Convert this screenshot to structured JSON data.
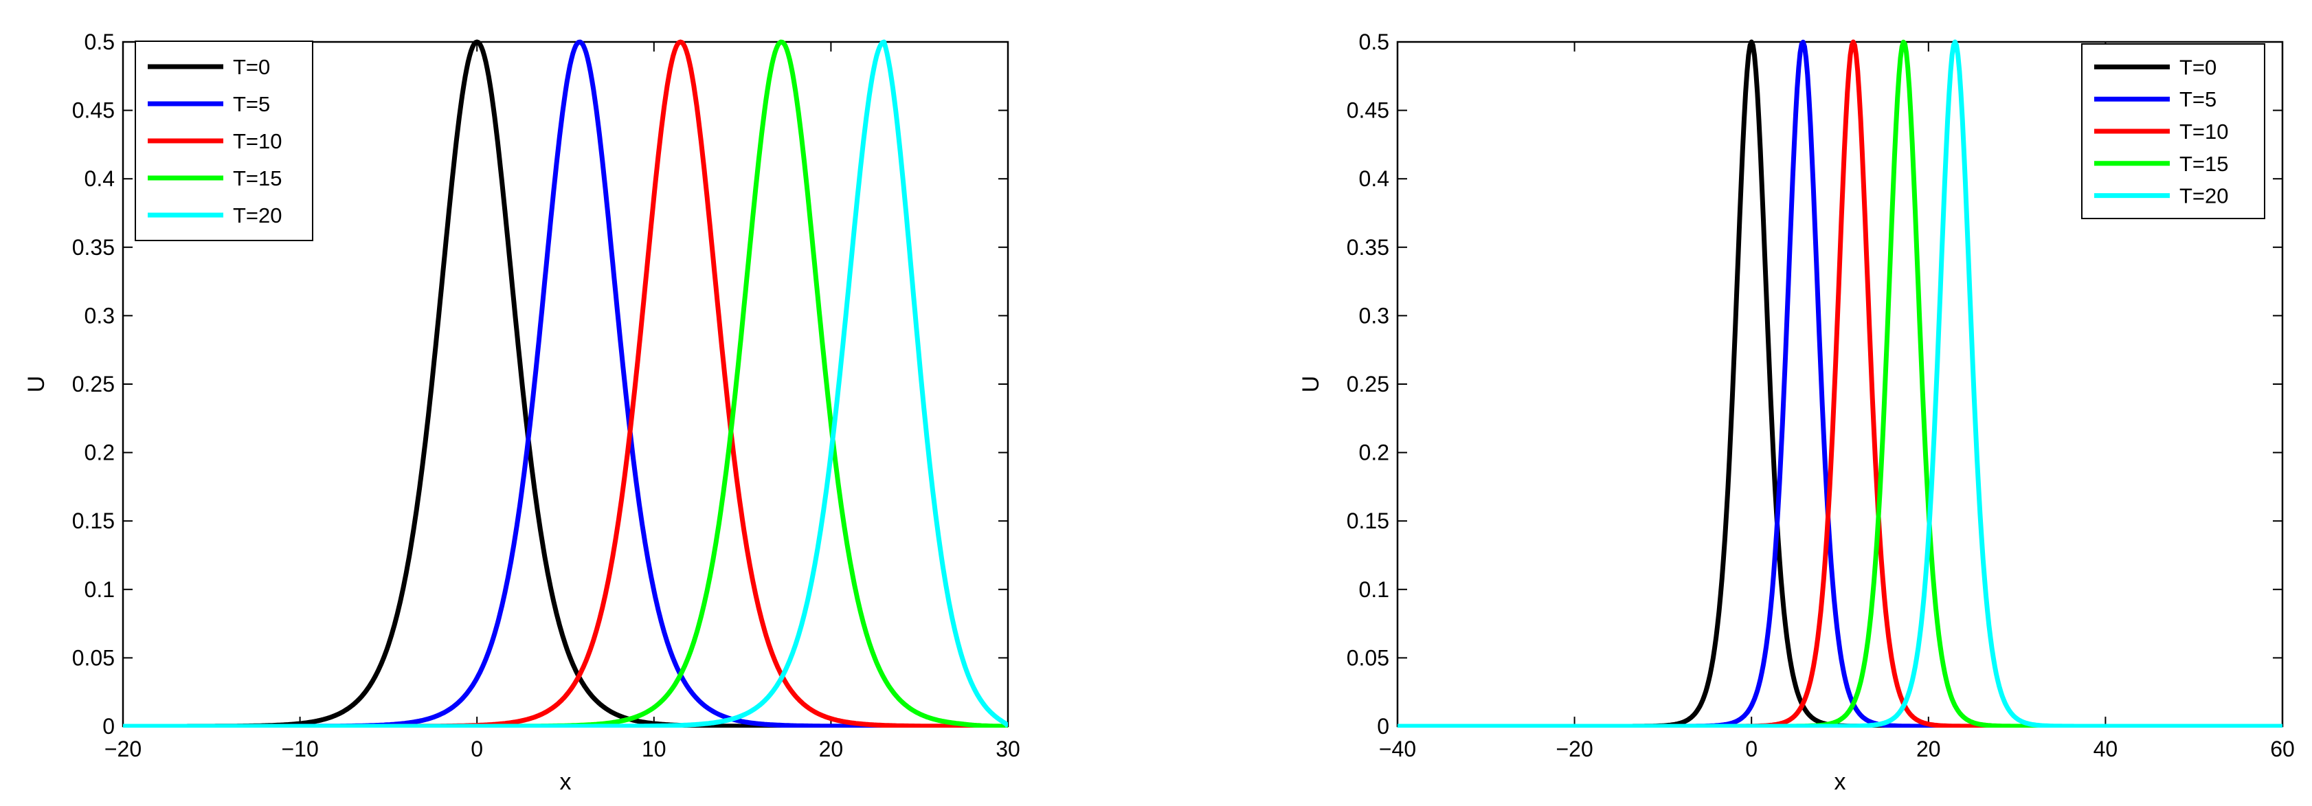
{
  "chart_data": [
    {
      "type": "line",
      "xlabel": "x",
      "ylabel": "U",
      "xlim": [
        -20,
        30
      ],
      "ylim": [
        0,
        0.5
      ],
      "xticks": [
        "-20",
        "-10",
        "0",
        "10",
        "20",
        "30"
      ],
      "yticks": [
        "0",
        "0.05",
        "0.1",
        "0.15",
        "0.2",
        "0.25",
        "0.3",
        "0.35",
        "0.4",
        "0.45",
        "0.5"
      ],
      "grid": false,
      "legend": "top-left",
      "series": [
        {
          "name": "T=0",
          "color": "#000000",
          "x": [
            -20,
            -16,
            -12,
            -10,
            -8,
            -6,
            -4,
            -2,
            0,
            2,
            4,
            6,
            8,
            10,
            12,
            14,
            16,
            20,
            24,
            28,
            30
          ],
          "y": [
            0.0005,
            0.001,
            0.006,
            0.013,
            0.03,
            0.068,
            0.14,
            0.28,
            0.5,
            0.28,
            0.14,
            0.068,
            0.03,
            0.013,
            0.006,
            0.003,
            0.001,
            0.0005,
            0.0003,
            0.0001,
            0
          ]
        },
        {
          "name": "T=5",
          "color": "#0000ff",
          "x": [
            -20,
            -12,
            -8,
            -5.8,
            -3.8,
            -1.8,
            0.2,
            2.2,
            3.8,
            5.8,
            7.8,
            9.8,
            11.8,
            13.8,
            15.8,
            17.8,
            19.8,
            21.8,
            25.8,
            30
          ],
          "y": [
            0,
            0.0005,
            0.002,
            0.006,
            0.013,
            0.03,
            0.068,
            0.14,
            0.28,
            0.5,
            0.28,
            0.14,
            0.068,
            0.03,
            0.013,
            0.006,
            0.003,
            0.001,
            0.0005,
            0
          ]
        },
        {
          "name": "T=10",
          "color": "#ff0000",
          "x": [
            -20,
            -8,
            -4,
            -0.5,
            1.5,
            3.5,
            5.5,
            7.5,
            9.5,
            11.5,
            13.5,
            15.5,
            17.5,
            19.5,
            21.5,
            23.5,
            25.5,
            27.5,
            30
          ],
          "y": [
            0,
            0.0005,
            0.001,
            0.003,
            0.006,
            0.013,
            0.03,
            0.068,
            0.14,
            0.28,
            0.5,
            0.28,
            0.14,
            0.068,
            0.03,
            0.013,
            0.006,
            0.002,
            0
          ]
        },
        {
          "name": "T=15",
          "color": "#00ff00",
          "x": [
            -20,
            0,
            4,
            7.2,
            9.2,
            11.2,
            13.2,
            15.2,
            17.2,
            19.2,
            21.2,
            23.2,
            25.2,
            27.2,
            28.5,
            30
          ],
          "y": [
            0,
            0.0003,
            0.001,
            0.006,
            0.013,
            0.03,
            0.068,
            0.14,
            0.28,
            0.5,
            0.28,
            0.14,
            0.068,
            0.03,
            0.012,
            0
          ]
        },
        {
          "name": "T=20",
          "color": "#00ffff",
          "x": [
            -20,
            6,
            10,
            13,
            15,
            17,
            19,
            21,
            23,
            25,
            27,
            29,
            30
          ],
          "y": [
            0,
            0.0003,
            0.001,
            0.006,
            0.013,
            0.03,
            0.068,
            0.14,
            0.28,
            0.5,
            0.28,
            0.068,
            0
          ]
        }
      ]
    },
    {
      "type": "line",
      "xlabel": "x",
      "ylabel": "U",
      "xlim": [
        -40,
        60
      ],
      "ylim": [
        0,
        0.5
      ],
      "xticks": [
        "-40",
        "-20",
        "0",
        "20",
        "40",
        "60"
      ],
      "yticks": [
        "0",
        "0.05",
        "0.1",
        "0.15",
        "0.2",
        "0.25",
        "0.3",
        "0.35",
        "0.4",
        "0.45",
        "0.5"
      ],
      "grid": false,
      "legend": "top-right",
      "series": [
        {
          "name": "T=0",
          "color": "#000000"
        },
        {
          "name": "T=5",
          "color": "#0000ff"
        },
        {
          "name": "T=10",
          "color": "#ff0000"
        },
        {
          "name": "T=15",
          "color": "#00ff00"
        },
        {
          "name": "T=20",
          "color": "#00ffff"
        }
      ]
    }
  ]
}
